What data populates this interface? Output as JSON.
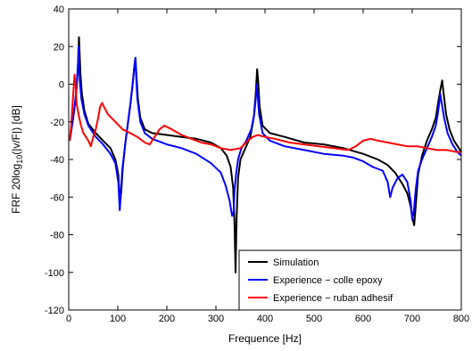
{
  "chart_data": {
    "type": "line",
    "title": "",
    "xlabel": "Frequence [Hz]",
    "ylabel_prefix": "FRF 20log",
    "ylabel_sub": "10",
    "ylabel_suffix": "(|v/F|) [dB]",
    "xlim": [
      0,
      800
    ],
    "ylim": [
      -120,
      40
    ],
    "xticks": [
      "0",
      "100",
      "200",
      "300",
      "400",
      "500",
      "600",
      "700",
      "800"
    ],
    "yticks": [
      "40",
      "20",
      "0",
      "-20",
      "-40",
      "-60",
      "-80",
      "-100",
      "-120"
    ],
    "grid": false,
    "legend_position": "bottom-right",
    "series": [
      {
        "name": "Simulation",
        "color": "#000000",
        "x": [
          2,
          8,
          12,
          16,
          19,
          21,
          22,
          24,
          27,
          32,
          40,
          55,
          70,
          85,
          95,
          101,
          104,
          107,
          110,
          115,
          120,
          126,
          131,
          134,
          136,
          138,
          141,
          146,
          155,
          170,
          200,
          230,
          260,
          290,
          310,
          322,
          330,
          335,
          338,
          340,
          342,
          345,
          350,
          360,
          370,
          377,
          381,
          384,
          386,
          389,
          395,
          410,
          440,
          480,
          520,
          560,
          600,
          630,
          650,
          665,
          680,
          690,
          697,
          701,
          704,
          707,
          712,
          720,
          730,
          740,
          748,
          754,
          758,
          761,
          764,
          769,
          776,
          785,
          795,
          800
        ],
        "y": [
          -30,
          -20,
          -12,
          -2,
          10,
          25,
          18,
          5,
          -5,
          -14,
          -21,
          -26,
          -30,
          -34,
          -40,
          -48,
          -60,
          -58,
          -45,
          -32,
          -22,
          -10,
          2,
          10,
          14,
          5,
          -8,
          -18,
          -24,
          -26,
          -27,
          -28,
          -29,
          -31,
          -34,
          -38,
          -44,
          -55,
          -75,
          -100,
          -72,
          -50,
          -40,
          -34,
          -28,
          -18,
          -5,
          8,
          2,
          -12,
          -22,
          -26,
          -28,
          -31,
          -32,
          -34,
          -37,
          -40,
          -43,
          -47,
          -53,
          -58,
          -65,
          -72,
          -75,
          -65,
          -48,
          -38,
          -30,
          -24,
          -18,
          -8,
          -2,
          2,
          -5,
          -16,
          -24,
          -30,
          -34,
          -36
        ]
      },
      {
        "name": "Experience − colle epoxy",
        "color": "#0000ff",
        "x": [
          2,
          8,
          12,
          16,
          19,
          20,
          21,
          23,
          26,
          32,
          40,
          55,
          70,
          85,
          95,
          101,
          104,
          106,
          109,
          115,
          120,
          126,
          131,
          134,
          136,
          137,
          140,
          146,
          155,
          170,
          200,
          230,
          260,
          290,
          310,
          320,
          328,
          333,
          336,
          338,
          341,
          345,
          352,
          362,
          372,
          378,
          381,
          383,
          385,
          388,
          395,
          410,
          440,
          480,
          520,
          560,
          580,
          600,
          620,
          640,
          650,
          655,
          660,
          670,
          680,
          690,
          697,
          700,
          703,
          707,
          712,
          720,
          730,
          740,
          748,
          752,
          755,
          757,
          760,
          765,
          772,
          782,
          792,
          800
        ],
        "y": [
          -30,
          -20,
          -12,
          -2,
          12,
          20,
          10,
          0,
          -8,
          -16,
          -22,
          -28,
          -32,
          -37,
          -42,
          -52,
          -67,
          -60,
          -46,
          -32,
          -22,
          -10,
          2,
          10,
          14,
          6,
          -8,
          -20,
          -26,
          -29,
          -32,
          -34,
          -37,
          -42,
          -47,
          -54,
          -62,
          -70,
          -68,
          -56,
          -48,
          -40,
          -34,
          -30,
          -24,
          -16,
          -8,
          0,
          -6,
          -16,
          -26,
          -30,
          -33,
          -35,
          -37,
          -38,
          -39,
          -41,
          -44,
          -46,
          -52,
          -60,
          -55,
          -50,
          -48,
          -52,
          -62,
          -72,
          -68,
          -56,
          -46,
          -40,
          -34,
          -28,
          -22,
          -16,
          -10,
          -5,
          -10,
          -18,
          -26,
          -32,
          -36,
          -38
        ]
      },
      {
        "name": "Experience − ruban adhesif",
        "color": "#ff0000",
        "x": [
          2,
          5,
          8,
          10,
          12,
          14,
          16,
          20,
          25,
          30,
          40,
          45,
          50,
          55,
          60,
          64,
          68,
          72,
          80,
          95,
          110,
          125,
          140,
          155,
          165,
          175,
          185,
          195,
          210,
          230,
          250,
          270,
          290,
          310,
          330,
          350,
          365,
          375,
          385,
          400,
          420,
          450,
          480,
          510,
          540,
          570,
          585,
          600,
          615,
          630,
          650,
          670,
          690,
          710,
          730,
          750,
          770,
          790,
          800
        ],
        "y": [
          -30,
          -22,
          -10,
          -2,
          5,
          0,
          -10,
          -16,
          -22,
          -26,
          -30,
          -33,
          -28,
          -24,
          -18,
          -12,
          -10,
          -12,
          -16,
          -20,
          -24,
          -26,
          -28,
          -31,
          -32,
          -28,
          -24,
          -22,
          -24,
          -27,
          -29,
          -31,
          -32,
          -34,
          -35,
          -34,
          -30,
          -28,
          -27,
          -28,
          -29,
          -31,
          -32,
          -33,
          -34,
          -35,
          -33,
          -30,
          -29,
          -30,
          -31,
          -32,
          -33,
          -33,
          -34,
          -35,
          -35,
          -36,
          -36
        ]
      }
    ]
  }
}
